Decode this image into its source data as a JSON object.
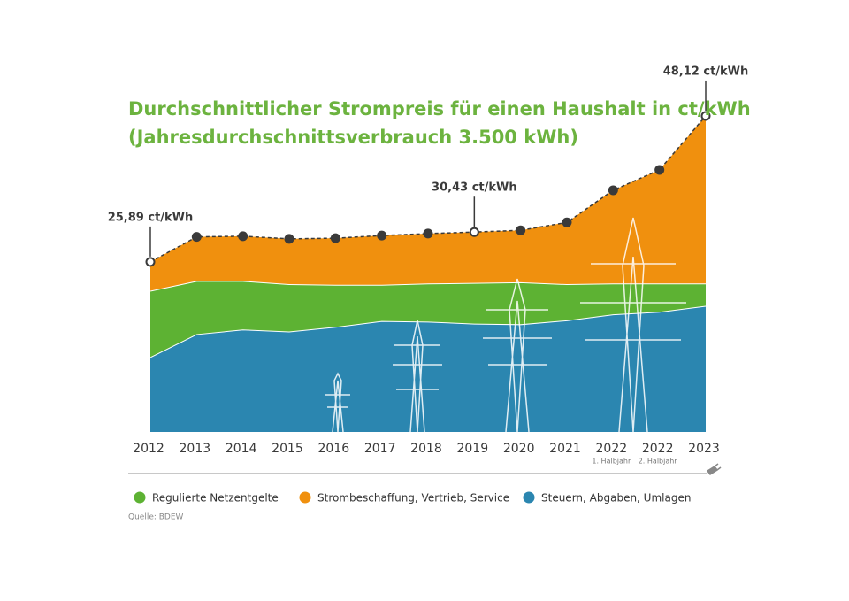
{
  "chart_data": {
    "type": "stacked-area",
    "title": [
      "Durchschnittlicher Strompreis für einen Haushalt in ct/kWh",
      "(Jahresdurchschnittsverbrauch 3.500 kWh)"
    ],
    "categories": [
      "2012",
      "2013",
      "2014",
      "2015",
      "2016",
      "2017",
      "2018",
      "2019",
      "2020",
      "2021",
      "2022",
      "2022",
      "2023"
    ],
    "category_sublabels": [
      null,
      null,
      null,
      null,
      null,
      null,
      null,
      null,
      null,
      null,
      "1. Halbjahr",
      "2. Halbjahr",
      null
    ],
    "series": [
      {
        "name": "Regulierte Netzentgelte",
        "color": "#5db233",
        "values": [
          10.1,
          8.1,
          7.4,
          7.2,
          6.4,
          5.5,
          5.8,
          6.2,
          6.4,
          5.5,
          4.7,
          4.3,
          3.4
        ]
      },
      {
        "name": "Strombeschaffung, Vertrieb, Service",
        "color": "#f0900e",
        "values": [
          4.39,
          6.7,
          6.8,
          6.9,
          7.1,
          7.5,
          7.6,
          7.73,
          7.9,
          9.4,
          14.2,
          17.3,
          25.52
        ]
      },
      {
        "name": "Steuern, Abgaben, Umlagen",
        "color": "#2b86b0",
        "values": [
          11.4,
          14.9,
          15.6,
          15.3,
          16.0,
          16.9,
          16.8,
          16.5,
          16.4,
          17.0,
          17.9,
          18.3,
          19.2
        ]
      }
    ],
    "total_labels": [
      "25,89 ct/kWh",
      null,
      null,
      null,
      null,
      null,
      null,
      "30,43 ct/kWh",
      null,
      null,
      null,
      null,
      "48,12 ct/kWh"
    ],
    "ylim": [
      0,
      50
    ],
    "source": "Quelle: BDEW"
  }
}
